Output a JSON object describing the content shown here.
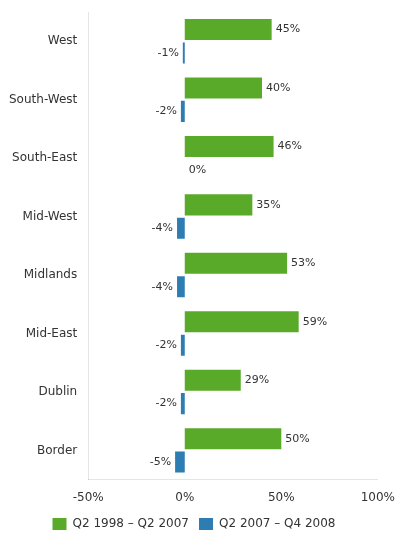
{
  "chart_data": {
    "type": "bar",
    "orientation": "horizontal",
    "categories": [
      "West",
      "South-West",
      "South-East",
      "Mid-West",
      "Midlands",
      "Mid-East",
      "Dublin",
      "Border"
    ],
    "series": [
      {
        "name": "Q2 1998 – Q2 2007",
        "color": "#5aaa2a",
        "values": [
          45,
          40,
          46,
          35,
          53,
          59,
          29,
          50
        ],
        "value_labels": [
          "45%",
          "40%",
          "46%",
          "35%",
          "53%",
          "59%",
          "29%",
          "50%"
        ]
      },
      {
        "name": "Q2 2007 – Q4 2008",
        "color": "#2d7db3",
        "values": [
          -1,
          -2,
          0,
          -4,
          -4,
          -2,
          -2,
          -5
        ],
        "value_labels": [
          "-1%",
          "-2%",
          "0%",
          "-4%",
          "-4%",
          "-2%",
          "-2%",
          "-5%"
        ]
      }
    ],
    "xlim": [
      -50,
      100
    ],
    "xticks": [
      {
        "value": -50,
        "label": "-50%"
      },
      {
        "value": 0,
        "label": "0%"
      },
      {
        "value": 50,
        "label": "50%"
      },
      {
        "value": 100,
        "label": "100%"
      }
    ],
    "grid": false,
    "legend": "bottom",
    "data_labels": true
  }
}
